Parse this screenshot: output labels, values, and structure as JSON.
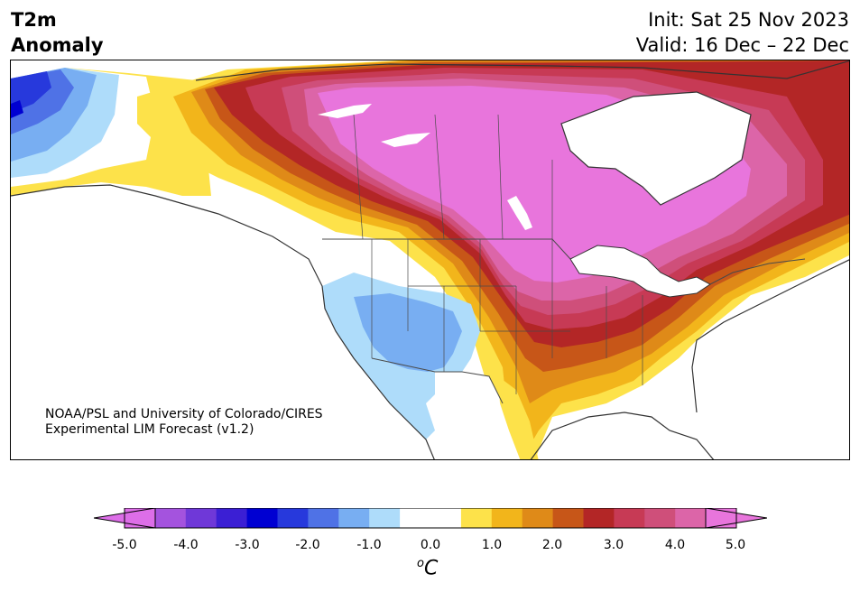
{
  "header": {
    "variable": "T2m",
    "variable_sub": "Anomaly",
    "init": "Init: Sat 25 Nov 2023",
    "valid": "Valid: 16 Dec – 22 Dec"
  },
  "credit": {
    "line1": "NOAA/PSL and University of Colorado/CIRES",
    "line2": "Experimental LIM Forecast (v1.2)"
  },
  "colorbar": {
    "tick_labels": [
      "-5.0",
      "-4.0",
      "-3.0",
      "-2.0",
      "-1.0",
      "0.0",
      "1.0",
      "2.0",
      "3.0",
      "4.0",
      "5.0"
    ],
    "unit_symbol": "o",
    "unit_letter": "C",
    "colors": [
      "#dd6ee8",
      "#a453de",
      "#6f38d8",
      "#3b1fd4",
      "#0000d2",
      "#2739dc",
      "#4f72e6",
      "#78aef2",
      "#aedcfa",
      "#ffffff",
      "#ffffff",
      "#fde24a",
      "#f2b51b",
      "#df8a18",
      "#c75618",
      "#b32626",
      "#c73a55",
      "#cf4f7a",
      "#dc65a8",
      "#e875dc"
    ]
  },
  "map": {
    "colors": {
      "water": "#ffffff",
      "land_neutral": "#ffffff",
      "coast": "#333333",
      "border": "#4a4a4a"
    }
  }
}
